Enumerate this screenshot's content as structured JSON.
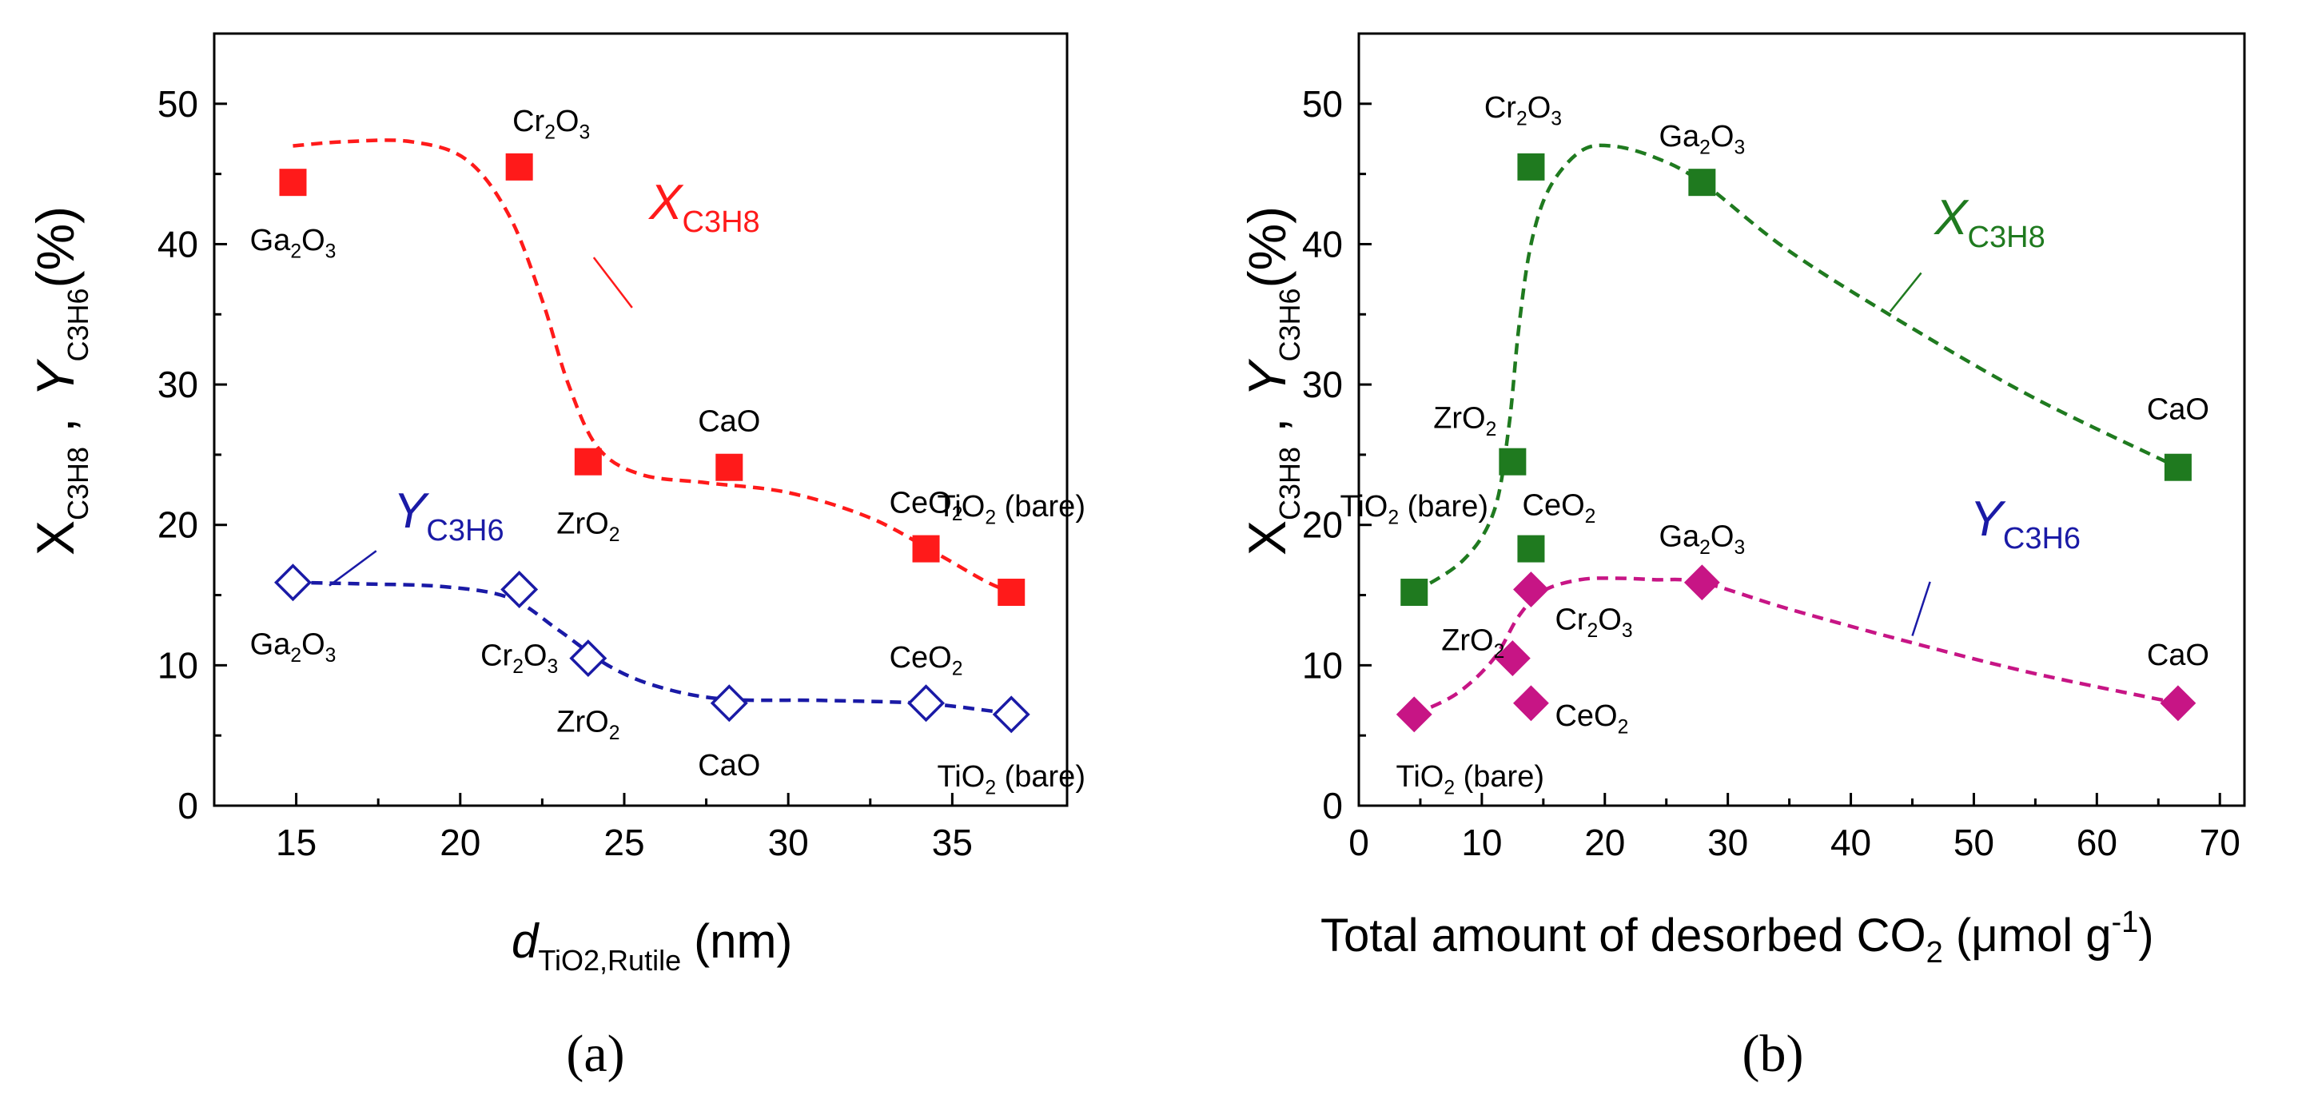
{
  "chart_data": [
    {
      "panel": "(a)",
      "type": "scatter",
      "xlabel": {
        "main": "d",
        "sub": "TiO2,Rutile",
        "unit": "(nm)"
      },
      "ylabel": {
        "x": "X",
        "x_sub": "C3H8",
        "sep": ",",
        "y": "Y",
        "y_sub": "C3H6",
        "unit": "(%)"
      },
      "xlim": [
        12.5,
        38.5
      ],
      "ylim": [
        0,
        55
      ],
      "xticks": [
        15,
        20,
        25,
        30,
        35
      ],
      "yticks": [
        0,
        10,
        20,
        30,
        40,
        50
      ],
      "series": [
        {
          "name": "X_C3H8",
          "label_main": "X",
          "label_sub": "C3H8",
          "color": "#ff1a1a",
          "marker": "filled-square",
          "points": [
            {
              "x": 14.9,
              "y": 44.4,
              "label": "Ga2O3"
            },
            {
              "x": 21.8,
              "y": 45.5,
              "label": "Cr2O3"
            },
            {
              "x": 23.9,
              "y": 24.5,
              "label": "ZrO2"
            },
            {
              "x": 28.2,
              "y": 24.1,
              "label": "CaO"
            },
            {
              "x": 34.2,
              "y": 18.3,
              "label": "CeO2"
            },
            {
              "x": 36.8,
              "y": 15.2,
              "label": "TiO2 (bare)"
            }
          ],
          "trend": [
            [
              14.9,
              47.0
            ],
            [
              16.5,
              47.3
            ],
            [
              18.5,
              47.3
            ],
            [
              20.2,
              46.0
            ],
            [
              21.5,
              42.0
            ],
            [
              22.5,
              36.0
            ],
            [
              23.3,
              30.0
            ],
            [
              24.2,
              25.5
            ],
            [
              25.5,
              23.6
            ],
            [
              27.5,
              23.0
            ],
            [
              30.0,
              22.3
            ],
            [
              32.5,
              20.5
            ],
            [
              34.5,
              18.0
            ],
            [
              36.0,
              16.0
            ],
            [
              36.8,
              15.2
            ]
          ]
        },
        {
          "name": "Y_C3H6",
          "label_main": "Y",
          "label_sub": "C3H6",
          "color": "#1a1aa6",
          "marker": "open-diamond",
          "points": [
            {
              "x": 14.9,
              "y": 15.9,
              "label": "Ga2O3"
            },
            {
              "x": 21.8,
              "y": 15.4,
              "label": "Cr2O3"
            },
            {
              "x": 23.9,
              "y": 10.5,
              "label": "ZrO2"
            },
            {
              "x": 28.2,
              "y": 7.3,
              "label": "CaO"
            },
            {
              "x": 34.2,
              "y": 7.3,
              "label": "CeO2"
            },
            {
              "x": 36.8,
              "y": 6.5,
              "label": "TiO2 (bare)"
            }
          ],
          "trend": [
            [
              14.9,
              15.9
            ],
            [
              17.0,
              15.8
            ],
            [
              19.5,
              15.6
            ],
            [
              21.5,
              14.8
            ],
            [
              23.0,
              12.5
            ],
            [
              24.5,
              10.0
            ],
            [
              26.0,
              8.5
            ],
            [
              28.0,
              7.6
            ],
            [
              31.0,
              7.5
            ],
            [
              34.0,
              7.3
            ],
            [
              36.0,
              6.8
            ],
            [
              36.8,
              6.5
            ]
          ]
        }
      ]
    },
    {
      "panel": "(b)",
      "type": "scatter",
      "xlabel": {
        "main": "Total amount of desorbed CO",
        "sub": "2",
        "unit": " (μmol g",
        "sup": "-1",
        "close": ")"
      },
      "ylabel": {
        "x": "X",
        "x_sub": "C3H8",
        "sep": ",",
        "y": "Y",
        "y_sub": "C3H6",
        "unit": "(%)"
      },
      "xlim": [
        0,
        72
      ],
      "ylim": [
        0,
        55
      ],
      "xticks": [
        0,
        10,
        20,
        30,
        40,
        50,
        60,
        70
      ],
      "yticks": [
        0,
        10,
        20,
        30,
        40,
        50
      ],
      "series": [
        {
          "name": "X_C3H8",
          "label_main": "X",
          "label_sub": "C3H8",
          "color": "#1f7a1f",
          "marker": "filled-square",
          "points": [
            {
              "x": 4.5,
              "y": 15.2,
              "label": "TiO2 (bare)"
            },
            {
              "x": 12.5,
              "y": 24.5,
              "label": "ZrO2"
            },
            {
              "x": 14.0,
              "y": 45.5,
              "label": "Cr2O3"
            },
            {
              "x": 14.0,
              "y": 18.3,
              "label": "CeO2"
            },
            {
              "x": 27.9,
              "y": 44.4,
              "label": "Ga2O3"
            },
            {
              "x": 66.6,
              "y": 24.1,
              "label": "CaO"
            }
          ],
          "trend": [
            [
              4.5,
              15.2
            ],
            [
              8.5,
              17.5
            ],
            [
              11.0,
              21.0
            ],
            [
              12.2,
              27.0
            ],
            [
              13.0,
              34.0
            ],
            [
              14.0,
              40.0
            ],
            [
              15.5,
              44.0
            ],
            [
              18.0,
              46.6
            ],
            [
              20.5,
              47.0
            ],
            [
              24.0,
              46.2
            ],
            [
              27.9,
              44.4
            ],
            [
              35.0,
              39.5
            ],
            [
              45.0,
              34.0
            ],
            [
              55.0,
              29.0
            ],
            [
              66.6,
              24.1
            ]
          ]
        },
        {
          "name": "Y_C3H6",
          "label_main": "Y",
          "label_sub": "C3H6",
          "color": "#c71585",
          "label_color": "#1a1aa6",
          "marker": "filled-diamond",
          "points": [
            {
              "x": 4.5,
              "y": 6.5,
              "label": "TiO2 (bare)"
            },
            {
              "x": 12.5,
              "y": 10.5,
              "label": "ZrO2"
            },
            {
              "x": 14.0,
              "y": 15.4,
              "label": "Cr2O3"
            },
            {
              "x": 14.0,
              "y": 7.3,
              "label": "CeO2"
            },
            {
              "x": 27.9,
              "y": 15.9,
              "label": "Ga2O3"
            },
            {
              "x": 66.6,
              "y": 7.3,
              "label": "CaO"
            }
          ],
          "trend": [
            [
              4.5,
              6.5
            ],
            [
              8.0,
              8.0
            ],
            [
              11.0,
              10.5
            ],
            [
              13.0,
              13.5
            ],
            [
              15.0,
              15.3
            ],
            [
              18.0,
              16.1
            ],
            [
              21.0,
              16.2
            ],
            [
              24.0,
              16.1
            ],
            [
              27.9,
              15.9
            ],
            [
              35.0,
              14.0
            ],
            [
              45.0,
              11.6
            ],
            [
              55.0,
              9.4
            ],
            [
              66.6,
              7.3
            ]
          ]
        }
      ]
    }
  ],
  "panel_labels": [
    "(a)",
    "(b)"
  ],
  "colors": {
    "axis": "#000000",
    "red": "#ff1a1a",
    "blue": "#1a1aa6",
    "green": "#1f7a1f",
    "magenta": "#c71585"
  }
}
